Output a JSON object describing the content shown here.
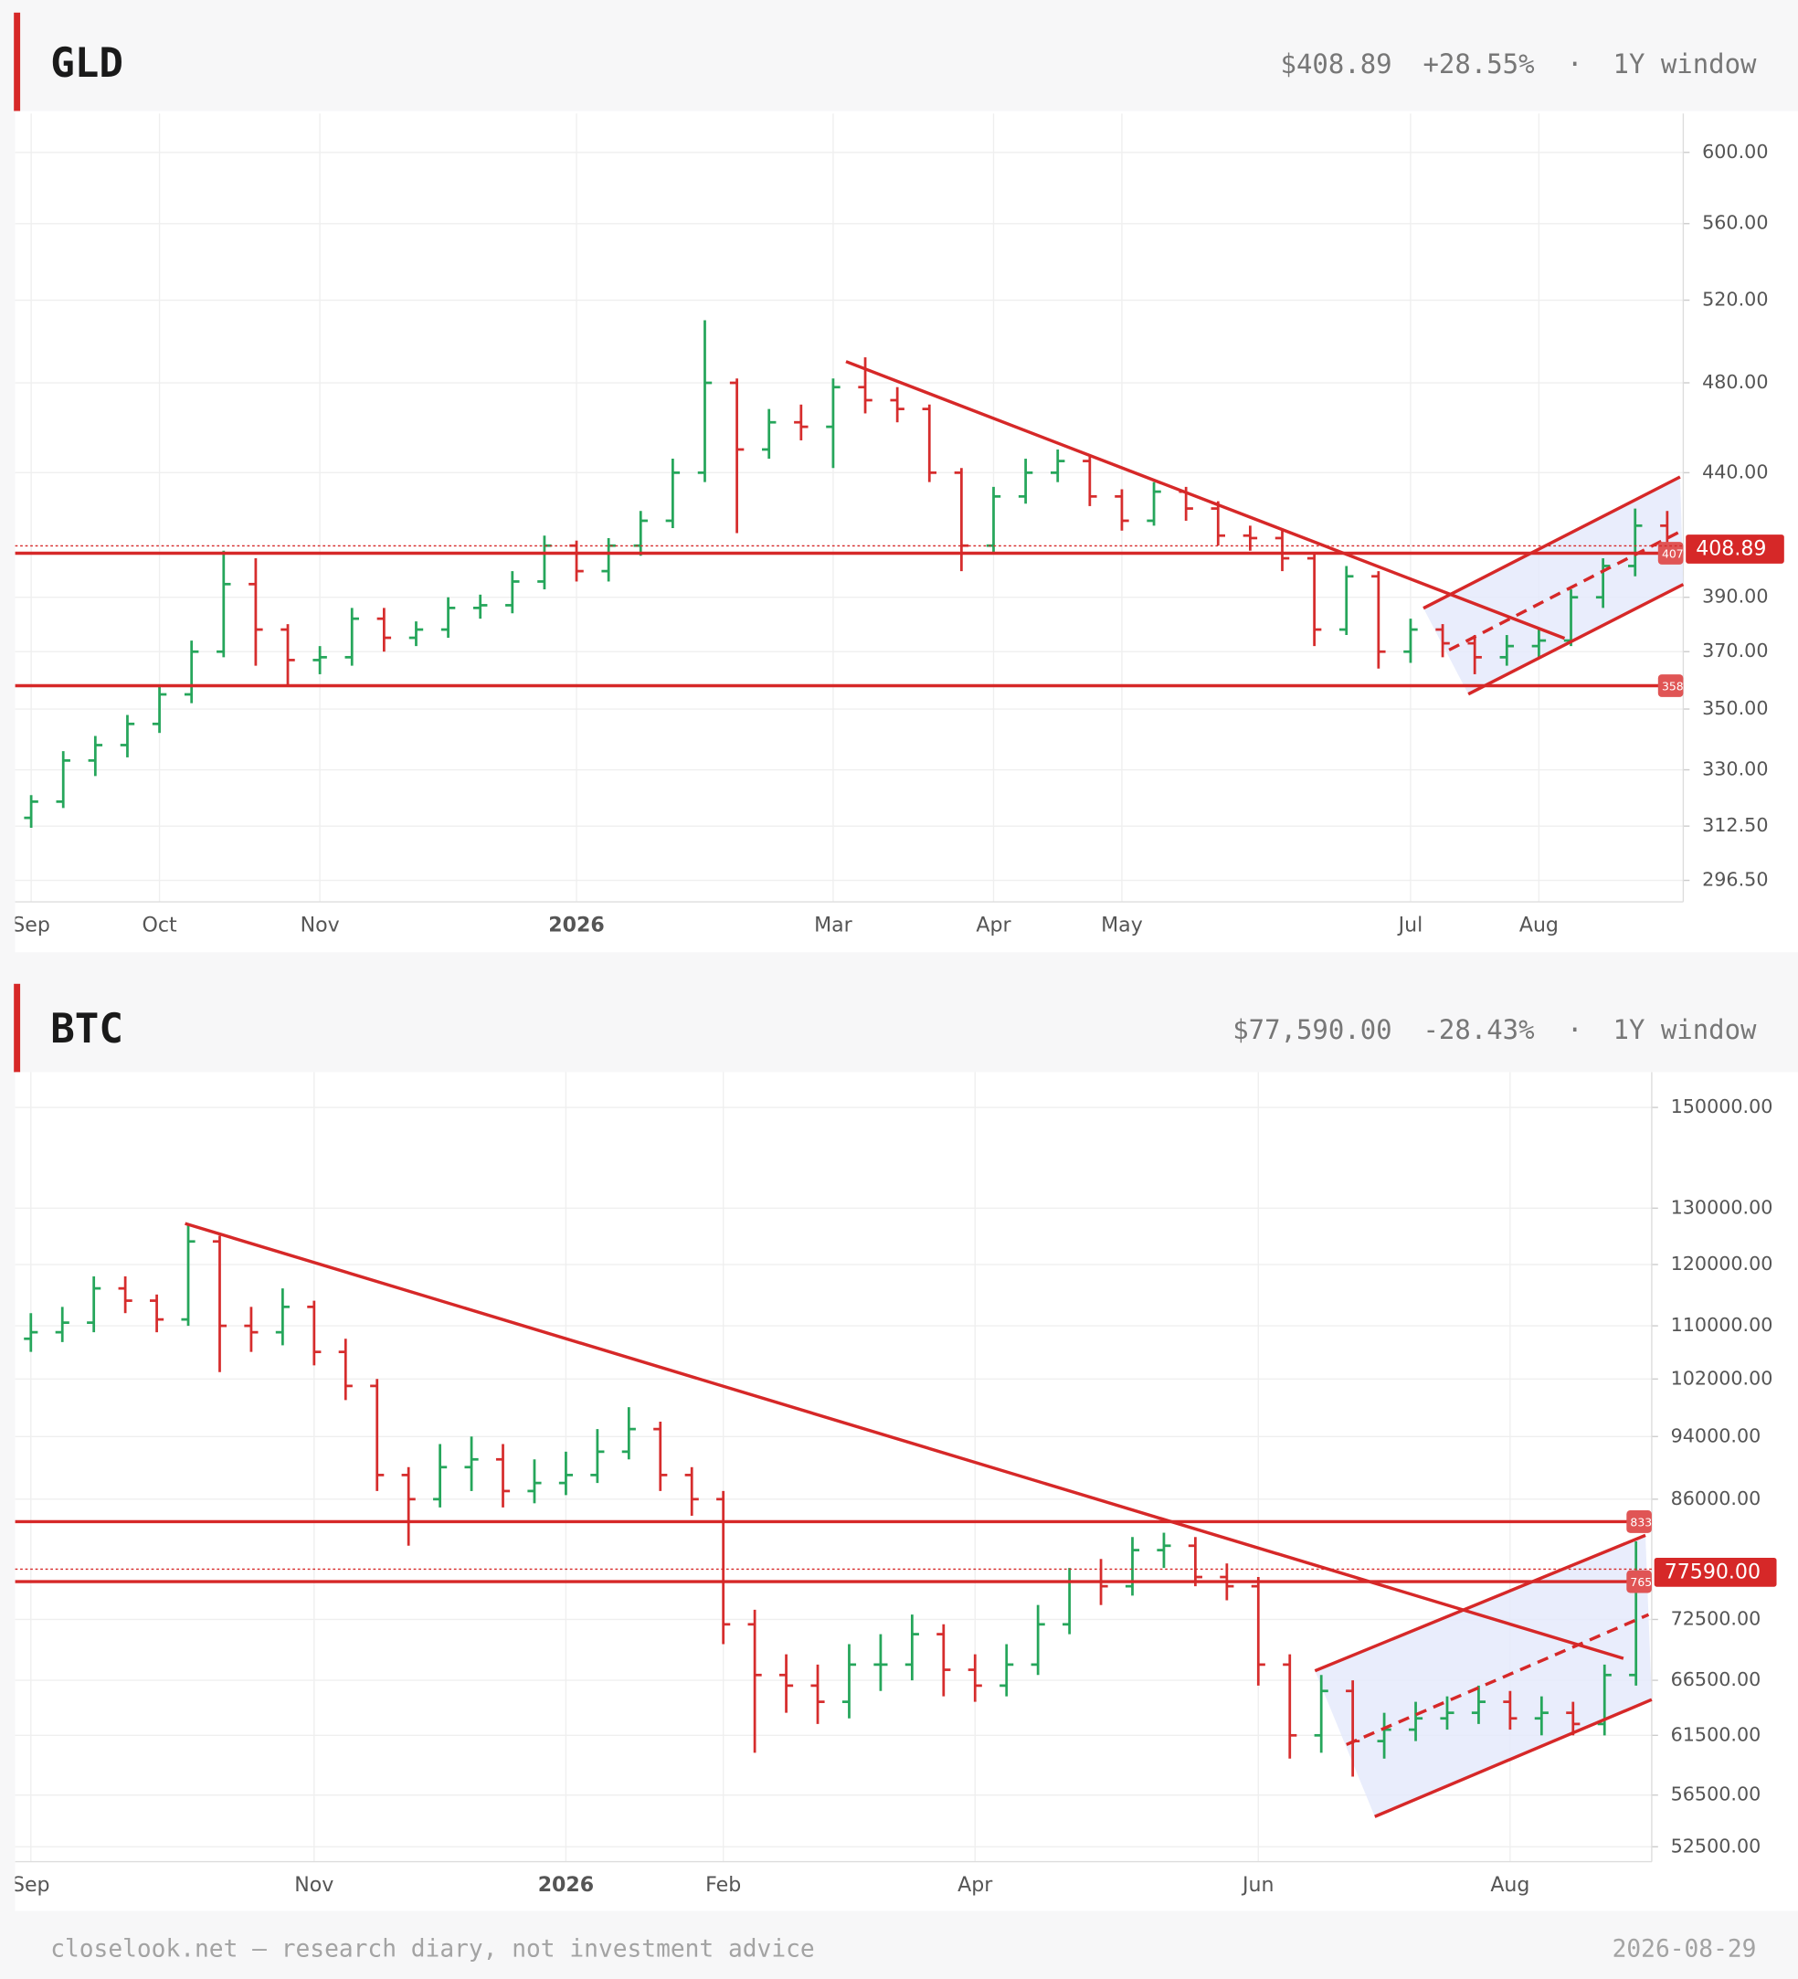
{
  "chart_data": [
    {
      "type": "ohlc",
      "title": "GLD",
      "price": "$408.89",
      "change": "+28.55%",
      "separator": "·",
      "window": "1Y window",
      "log": true,
      "grid": true,
      "up_color": "#26a65b",
      "down_color": "#d62d2d",
      "line_color": "#d62828",
      "channel_fill": "#e4e9fb",
      "categories": [
        "Sep",
        null,
        null,
        null,
        "Oct",
        null,
        null,
        null,
        null,
        "Nov",
        null,
        null,
        null,
        null,
        null,
        null,
        null,
        "2026",
        null,
        null,
        null,
        null,
        null,
        null,
        null,
        "Mar",
        null,
        null,
        null,
        null,
        "Apr",
        null,
        null,
        null,
        "May",
        null,
        null,
        null,
        null,
        null,
        null,
        null,
        null,
        "Jul",
        null,
        null,
        null,
        "Aug",
        null,
        null,
        null,
        null
      ],
      "open": [
        315,
        320,
        333,
        338,
        345,
        355,
        370,
        395,
        378,
        367,
        368,
        382,
        375,
        378,
        386,
        387,
        396,
        410,
        400,
        410,
        420,
        440,
        480,
        450,
        462,
        460,
        478,
        472,
        468,
        440,
        410,
        430,
        440,
        445,
        430,
        420,
        432,
        425,
        414,
        413,
        405,
        378,
        398,
        370,
        378,
        373,
        368,
        372,
        374,
        390,
        402,
        418
      ],
      "high": [
        322,
        336,
        341,
        348,
        358,
        374,
        408,
        405,
        380,
        372,
        386,
        386,
        381,
        390,
        391,
        400,
        414,
        412,
        413,
        424,
        446,
        510,
        482,
        468,
        470,
        482,
        492,
        478,
        470,
        442,
        434,
        446,
        450,
        447,
        433,
        436,
        434,
        428,
        418,
        416,
        407,
        402,
        400,
        382,
        380,
        376,
        376,
        378,
        393,
        405,
        425,
        424
      ],
      "low": [
        312,
        318,
        328,
        334,
        342,
        352,
        368,
        365,
        358,
        362,
        365,
        370,
        372,
        375,
        382,
        384,
        393,
        396,
        396,
        406,
        417,
        436,
        415,
        446,
        454,
        442,
        466,
        462,
        436,
        400,
        407,
        427,
        436,
        426,
        416,
        418,
        420,
        410,
        408,
        400,
        372,
        376,
        364,
        366,
        368,
        362,
        365,
        368,
        372,
        386,
        398,
        404
      ],
      "close": [
        320,
        333,
        338,
        345,
        355,
        370,
        395,
        378,
        367,
        368,
        382,
        375,
        378,
        386,
        387,
        396,
        410,
        400,
        410,
        420,
        440,
        480,
        450,
        462,
        460,
        478,
        472,
        468,
        440,
        410,
        430,
        440,
        445,
        430,
        420,
        432,
        425,
        414,
        413,
        405,
        378,
        398,
        370,
        378,
        373,
        368,
        372,
        374,
        390,
        402,
        418,
        408.89
      ],
      "last": 408.89,
      "levels": [
        407,
        358
      ],
      "trendline": {
        "x": [
          25.4,
          47.8
        ],
        "values": [
          490,
          374.8
        ]
      },
      "channel": {
        "upper": {
          "x": [
            43.4,
            51.4
          ],
          "values": [
            385.9,
            438.2
          ]
        },
        "middle": {
          "x": [
            44.2,
            51.4
          ],
          "values": [
            370.6,
            415.6
          ]
        },
        "lower": {
          "x": [
            44.8,
            51.5
          ],
          "values": [
            355.1,
            394.9
          ]
        }
      },
      "ylim": [
        290.4,
        623
      ],
      "yticks": [
        {
          "value": 296.5,
          "label": "296.50"
        },
        {
          "value": 312.5,
          "label": "312.50"
        },
        {
          "value": 330,
          "label": "330.00"
        },
        {
          "value": 350,
          "label": "350.00"
        },
        {
          "value": 370,
          "label": "370.00"
        },
        {
          "value": 390,
          "label": "390.00"
        },
        {
          "value": 440,
          "label": "440.00"
        },
        {
          "value": 480,
          "label": "480.00"
        },
        {
          "value": 520,
          "label": "520.00"
        },
        {
          "value": 560,
          "label": "560.00"
        },
        {
          "value": 600,
          "label": "600.00"
        }
      ]
    },
    {
      "type": "ohlc",
      "title": "BTC",
      "price": "$77,590.00",
      "change": "-28.43%",
      "separator": "·",
      "window": "1Y window",
      "log": true,
      "grid": true,
      "up_color": "#26a65b",
      "down_color": "#d62d2d",
      "line_color": "#d62828",
      "channel_fill": "#e4e9fb",
      "categories": [
        "Sep",
        null,
        null,
        null,
        null,
        null,
        null,
        null,
        null,
        "Nov",
        null,
        null,
        null,
        null,
        null,
        null,
        null,
        "2026",
        null,
        null,
        null,
        null,
        "Feb",
        null,
        null,
        null,
        null,
        null,
        null,
        null,
        "Apr",
        null,
        null,
        null,
        null,
        null,
        null,
        null,
        null,
        "Jun",
        null,
        null,
        null,
        null,
        null,
        null,
        null,
        "Aug",
        null,
        null,
        null,
        null
      ],
      "open": [
        108000,
        109000,
        110500,
        116000,
        114000,
        111000,
        124000,
        110000,
        109000,
        113000,
        106000,
        101000,
        89000,
        86000,
        90000,
        91000,
        87000,
        88000,
        89000,
        92000,
        95000,
        89000,
        86000,
        72000,
        67000,
        66000,
        64500,
        68000,
        68000,
        71000,
        67500,
        66000,
        68000,
        72000,
        76500,
        76000,
        80000,
        80500,
        77000,
        76000,
        68000,
        61500,
        65500,
        61000,
        62000,
        63000,
        63500,
        64500,
        63000,
        63500,
        62500,
        67000
      ],
      "high": [
        112000,
        113000,
        118000,
        118000,
        115000,
        127000,
        125000,
        113000,
        116000,
        114000,
        108000,
        102000,
        90000,
        93000,
        94000,
        93000,
        91000,
        92000,
        95000,
        98000,
        96000,
        90000,
        87000,
        73500,
        69000,
        68000,
        70000,
        71000,
        73000,
        72000,
        69000,
        70000,
        74000,
        78000,
        79000,
        81500,
        82000,
        81500,
        78500,
        77000,
        69000,
        67000,
        66500,
        63500,
        64500,
        65000,
        66000,
        65500,
        65000,
        64500,
        68000,
        81000
      ],
      "low": [
        106000,
        107500,
        109000,
        112000,
        109000,
        110000,
        103000,
        106000,
        107000,
        104000,
        99000,
        87000,
        80500,
        85000,
        87000,
        85000,
        85500,
        86500,
        88000,
        91000,
        87000,
        84000,
        70000,
        60000,
        63500,
        62500,
        63000,
        65500,
        66500,
        65000,
        64500,
        65000,
        67000,
        71000,
        74000,
        75000,
        78000,
        76000,
        74500,
        66000,
        59500,
        60000,
        58000,
        59500,
        61000,
        62000,
        62500,
        62000,
        61500,
        61500,
        61500,
        66000
      ],
      "close": [
        109000,
        110500,
        116000,
        114000,
        111000,
        124000,
        110000,
        109000,
        113000,
        106000,
        101000,
        89000,
        86000,
        90000,
        91000,
        87000,
        88000,
        89000,
        92000,
        95000,
        89000,
        86000,
        72000,
        67000,
        66000,
        64500,
        68000,
        68000,
        71000,
        67500,
        66000,
        68000,
        72000,
        76500,
        76000,
        80000,
        80500,
        77000,
        76000,
        68000,
        61500,
        65500,
        61000,
        62000,
        63000,
        63500,
        64500,
        63000,
        63500,
        62500,
        67000,
        77590
      ],
      "last": {
        "value": 77590,
        "label": "77590.00"
      },
      "levels": [
        83300,
        76500
      ],
      "trendline": {
        "x": [
          4.9,
          50.6
        ],
        "values": [
          127200,
          68600
        ]
      },
      "channel": {
        "upper": {
          "x": [
            40.8,
            51.3
          ],
          "values": [
            67400,
            81700
          ]
        },
        "middle": {
          "x": [
            41.8,
            51.4
          ],
          "values": [
            60700,
            73000
          ]
        },
        "lower": {
          "x": [
            42.7,
            51.5
          ],
          "values": [
            54800,
            64700
          ]
        }
      },
      "ylim": [
        51400,
        157700
      ],
      "yticks": [
        {
          "value": 52500,
          "label": "52500.00"
        },
        {
          "value": 56500,
          "label": "56500.00"
        },
        {
          "value": 61500,
          "label": "61500.00"
        },
        {
          "value": 66500,
          "label": "66500.00"
        },
        {
          "value": 72500,
          "label": "72500.00"
        },
        {
          "value": 86000,
          "label": "86000.00"
        },
        {
          "value": 94000,
          "label": "94000.00"
        },
        {
          "value": 102000,
          "label": "102000.00"
        },
        {
          "value": 110000,
          "label": "110000.00"
        },
        {
          "value": 120000,
          "label": "120000.00"
        },
        {
          "value": 130000,
          "label": "130000.00"
        },
        {
          "value": 150000,
          "label": "150000.00"
        }
      ]
    }
  ],
  "footer": {
    "left": "closelook.net — research diary, not investment advice",
    "right": "2026-08-29"
  }
}
